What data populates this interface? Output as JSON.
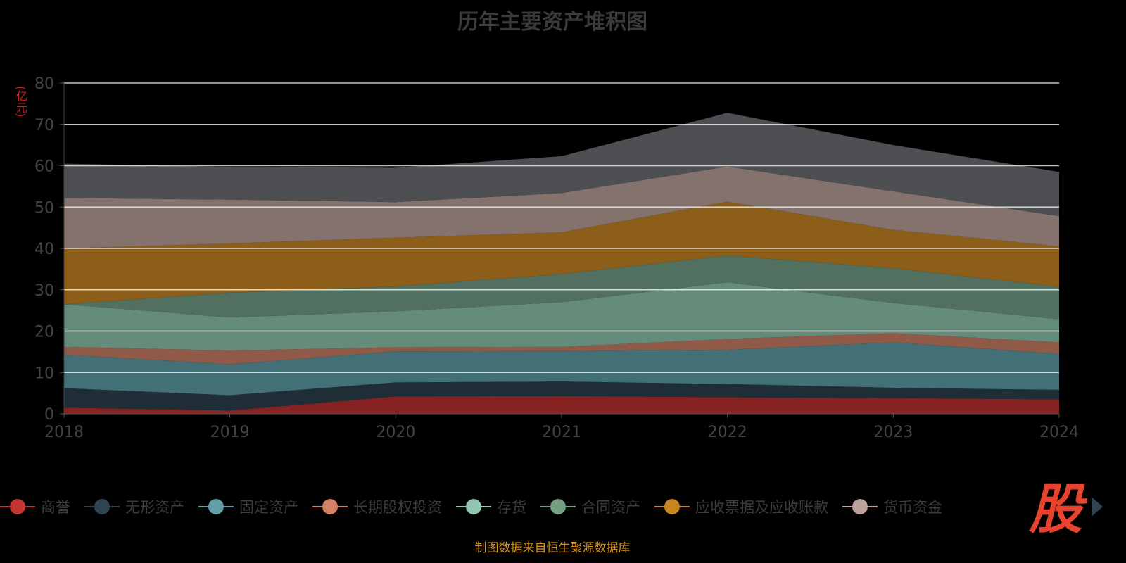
{
  "chart_data": {
    "type": "area",
    "stacked": true,
    "title": "历年主要资产堆积图",
    "ylabel": "(亿元)",
    "xlabel": "",
    "x": [
      "2018",
      "2019",
      "2020",
      "2021",
      "2022",
      "2023",
      "2024"
    ],
    "ylim": [
      0,
      80
    ],
    "yticks": [
      "0",
      "10",
      "20",
      "30",
      "40",
      "50",
      "60",
      "70",
      "80"
    ],
    "grid": true,
    "legend_position": "bottom",
    "series": [
      {
        "name": "商誉",
        "color": "#c23531",
        "fill": "#862322",
        "values": [
          1.5,
          0.8,
          4.2,
          4.3,
          4.0,
          3.8,
          3.5
        ]
      },
      {
        "name": "无形资产",
        "color": "#2f4554",
        "fill": "#1f2d37",
        "values": [
          4.7,
          3.7,
          3.4,
          3.5,
          3.2,
          2.5,
          2.3
        ]
      },
      {
        "name": "固定资产",
        "color": "#61a0a8",
        "fill": "#436f76",
        "values": [
          8.1,
          7.5,
          7.5,
          7.4,
          8.3,
          11.0,
          8.7
        ]
      },
      {
        "name": "长期股权投资",
        "color": "#d48265",
        "fill": "#915a48",
        "values": [
          1.9,
          3.3,
          1.0,
          1.0,
          2.6,
          2.2,
          2.8
        ]
      },
      {
        "name": "存货",
        "color": "#91c7ae",
        "fill": "#658c7a",
        "values": [
          10.3,
          8.0,
          8.7,
          10.8,
          13.7,
          7.3,
          5.6
        ]
      },
      {
        "name": "合同资产",
        "color": "#749f83",
        "fill": "#51705f",
        "values": [
          0.0,
          6.0,
          6.0,
          6.8,
          6.5,
          8.4,
          7.8
        ]
      },
      {
        "name": "应收票据及应收账款",
        "color": "#ca8622",
        "fill": "#8c5e1a",
        "values": [
          13.5,
          11.9,
          11.8,
          10.1,
          13.0,
          9.3,
          9.8
        ]
      },
      {
        "name": "货币资金",
        "color": "#bda29a",
        "fill": "#84726c",
        "values": [
          12.2,
          10.6,
          8.6,
          9.5,
          8.5,
          9.3,
          7.3
        ]
      },
      {
        "name": "",
        "color": "#6e7074",
        "fill": "#4d4f53",
        "values": [
          8.3,
          7.9,
          8.3,
          8.9,
          13.0,
          11.2,
          10.7
        ]
      }
    ]
  },
  "footer": {
    "source": "制图数据来自恒生聚源数据库",
    "logo": "股"
  }
}
